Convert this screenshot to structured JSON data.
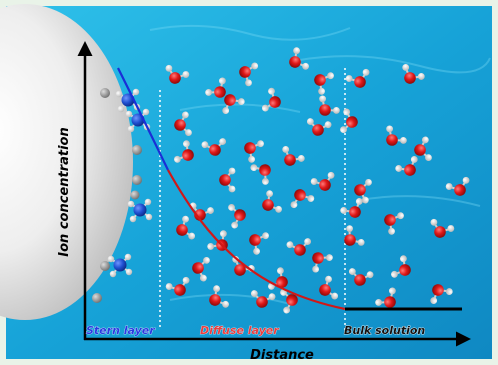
{
  "axes": {
    "y_label": "Ion concentration",
    "x_label": "Distance"
  },
  "regions": {
    "stern": "Stern layer",
    "diffuse": "Diffuse layer",
    "bulk": "Bulk solution"
  },
  "colors": {
    "stern_curve": "#1a2fd6",
    "diffuse_curve": "#d01818",
    "bulk_line": "#000000",
    "stern_label": "#2a3ae0",
    "diffuse_label": "#e84040",
    "bulk_label": "#111111",
    "water_oxygen": "#e01818",
    "water_hydrogen": "#f2f2f2",
    "cation_center": "#1f4fd0",
    "adsorbed_ion": "#8a8a8a"
  }
}
